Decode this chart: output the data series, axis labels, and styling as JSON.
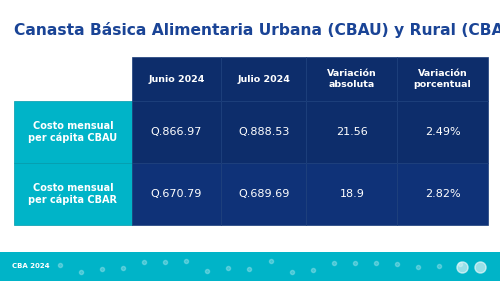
{
  "title": "Canasta Básica Alimentaria Urbana (CBAU) y Rural (CBAR)",
  "title_color": "#1a4496",
  "bg_color": "#ffffff",
  "footer_bg": "#00b4c8",
  "footer_text": "CBA 2024",
  "header_bg": "#0d2d6b",
  "header_text_color": "#ffffff",
  "label_bg": "#00b4c8",
  "data_bg": "#0d2d6b",
  "data_text_color": "#ffffff",
  "col_headers": [
    "Junio 2024",
    "Julio 2024",
    "Variación\nabsoluta",
    "Variación\nporcentual"
  ],
  "row_labels": [
    "Costo mensual\nper cápita CBAU",
    "Costo mensual\nper cápita CBAR"
  ],
  "rows": [
    [
      "Q.866.97",
      "Q.888.53",
      "21.56",
      "2.49%"
    ],
    [
      "Q.670.79",
      "Q.689.69",
      "18.9",
      "2.82%"
    ]
  ]
}
